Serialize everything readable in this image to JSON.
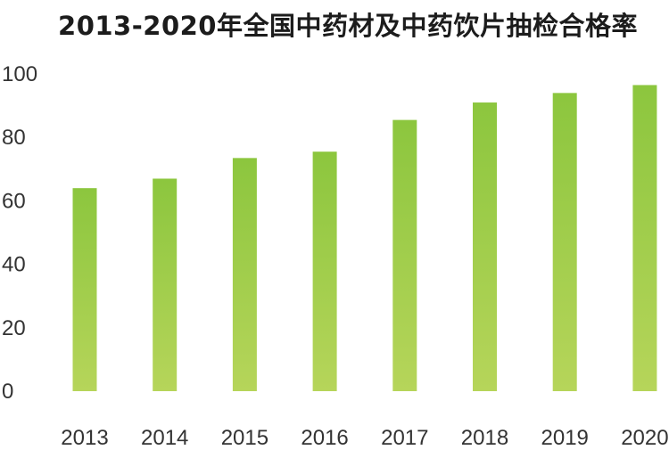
{
  "chart_data": {
    "type": "bar",
    "title": "2013-2020年全国中药材及中药饮片抽检合格率",
    "xlabel": "",
    "ylabel": "",
    "categories": [
      "2013",
      "2014",
      "2015",
      "2016",
      "2017",
      "2018",
      "2019",
      "2020"
    ],
    "values": [
      64,
      67,
      73.5,
      75.5,
      85.5,
      91,
      94,
      96.5
    ],
    "ylim": [
      0,
      100
    ],
    "yticks": [
      "0",
      "20",
      "40",
      "60",
      "80",
      "100"
    ],
    "grid": false,
    "legend": "none",
    "colors": {
      "bar_top": "#8cc63e",
      "bar_bottom": "#b6d55a"
    }
  }
}
